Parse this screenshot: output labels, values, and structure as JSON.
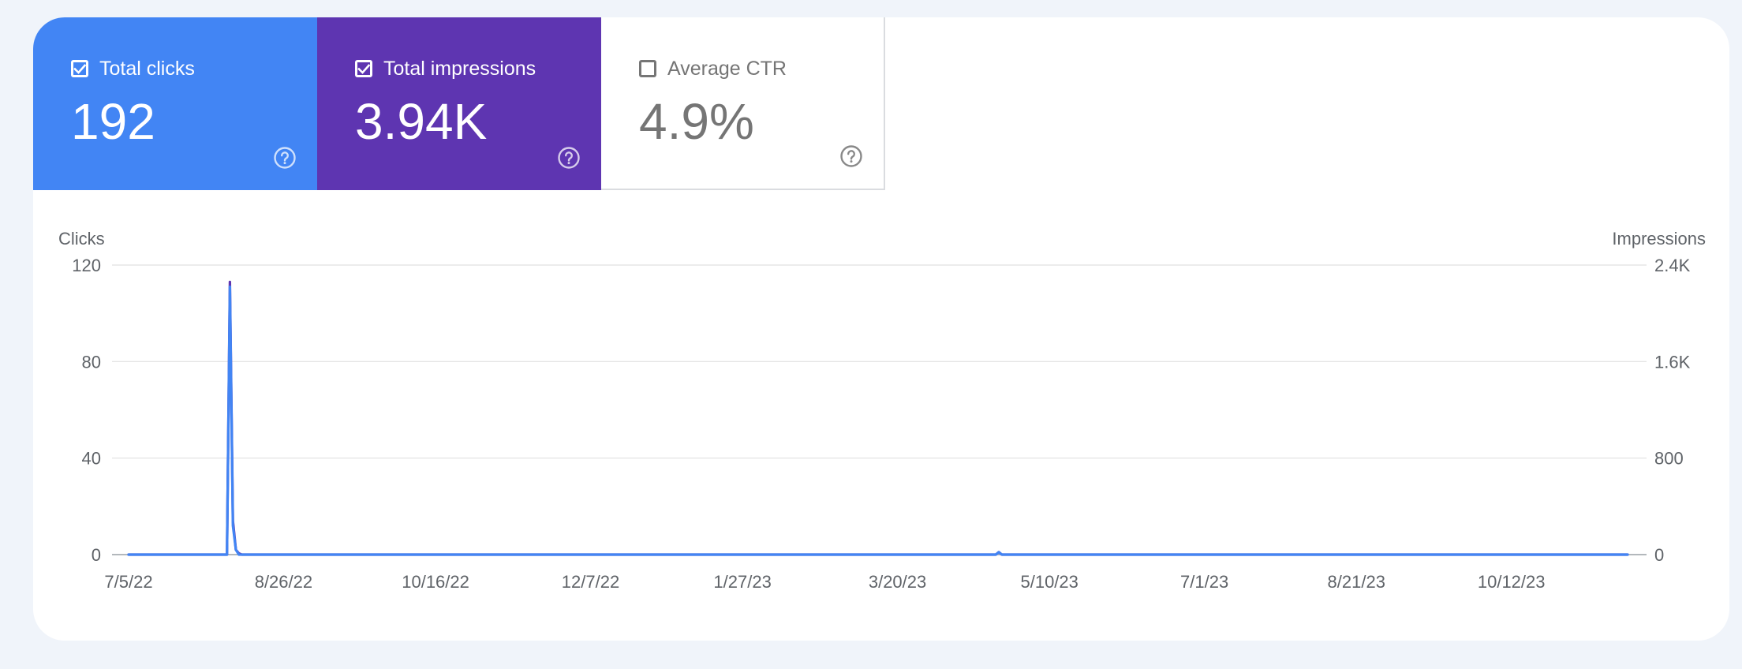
{
  "metrics": {
    "clicks": {
      "label": "Total clicks",
      "value": "192",
      "checked": true,
      "color": "#4285f4"
    },
    "impressions": {
      "label": "Total impressions",
      "value": "3.94K",
      "checked": true,
      "color": "#5e35b1"
    },
    "ctr": {
      "label": "Average CTR",
      "value": "4.9%",
      "checked": false,
      "color": "#ffffff"
    }
  },
  "icons": {
    "checked": "checkbox-checked-icon",
    "unchecked": "checkbox-unchecked-icon",
    "help": "help-circle-icon"
  },
  "chart_data": {
    "type": "line",
    "left_axis_title": "Clicks",
    "right_axis_title": "Impressions",
    "left_ticks": [
      "0",
      "40",
      "80",
      "120"
    ],
    "right_ticks": [
      "0",
      "800",
      "1.6K",
      "2.4K"
    ],
    "ylim_left": [
      0,
      120
    ],
    "ylim_right": [
      0,
      2400
    ],
    "x_tick_labels": [
      "7/5/22",
      "8/26/22",
      "10/16/22",
      "12/7/22",
      "1/27/23",
      "3/20/23",
      "5/10/23",
      "7/1/23",
      "8/21/23",
      "10/12/23"
    ],
    "x_range": [
      "7/5/22",
      "11/20/23"
    ],
    "grid": true,
    "series": [
      {
        "name": "Total impressions",
        "axis": "right",
        "color": "#5e35b1",
        "points": [
          [
            "7/5/22",
            0
          ],
          [
            "8/6/22",
            0
          ],
          [
            "8/7/22",
            0
          ],
          [
            "8/8/22",
            2260
          ],
          [
            "8/9/22",
            280
          ],
          [
            "8/10/22",
            40
          ],
          [
            "8/11/22",
            10
          ],
          [
            "8/12/22",
            0
          ],
          [
            "4/22/23",
            0
          ],
          [
            "4/23/23",
            20
          ],
          [
            "4/24/23",
            0
          ],
          [
            "11/20/23",
            0
          ]
        ]
      },
      {
        "name": "Total clicks",
        "axis": "left",
        "color": "#4285f4",
        "points": [
          [
            "7/5/22",
            0
          ],
          [
            "8/6/22",
            0
          ],
          [
            "8/7/22",
            0
          ],
          [
            "8/8/22",
            111
          ],
          [
            "8/9/22",
            12
          ],
          [
            "8/10/22",
            2
          ],
          [
            "8/11/22",
            0
          ],
          [
            "4/22/23",
            0
          ],
          [
            "4/23/23",
            1
          ],
          [
            "4/24/23",
            0
          ],
          [
            "11/20/23",
            0
          ]
        ]
      }
    ]
  }
}
